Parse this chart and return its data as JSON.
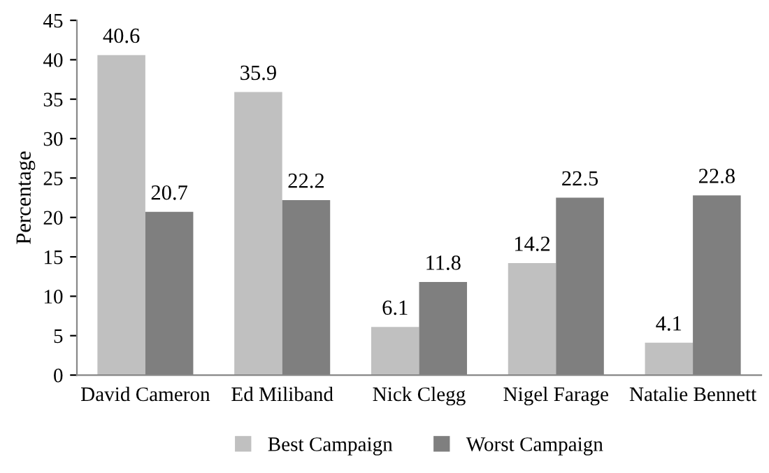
{
  "chart_data": {
    "type": "bar",
    "ylabel": "Percentage",
    "categories": [
      "David Cameron",
      "Ed Miliband",
      "Nick Clegg",
      "Nigel Farage",
      "Natalie Bennett"
    ],
    "series": [
      {
        "name": "Best Campaign",
        "color": "#c0c0c0",
        "values": [
          40.6,
          35.9,
          6.1,
          14.2,
          4.1
        ]
      },
      {
        "name": "Worst Campaign",
        "color": "#7f7f7f",
        "values": [
          20.7,
          22.2,
          11.8,
          22.5,
          22.8
        ]
      }
    ],
    "ylim": [
      0,
      45
    ],
    "yticks": [
      0,
      5,
      10,
      15,
      20,
      25,
      30,
      35,
      40,
      45
    ],
    "data_labels": true,
    "legend": "bottom",
    "grid": false
  }
}
